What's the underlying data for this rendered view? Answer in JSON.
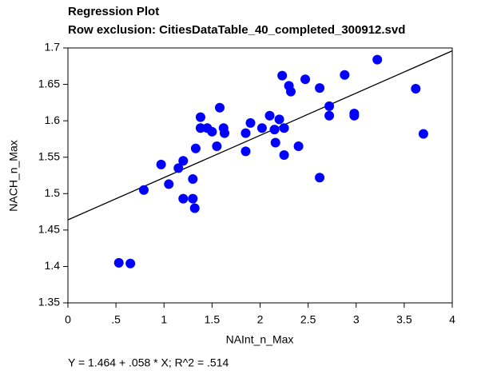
{
  "chart_data": {
    "type": "scatter",
    "title": "Regression Plot",
    "subtitle": "Row exclusion: CitiesDataTable_40_completed_300912.svd",
    "x_label": "NAInt_n_Max",
    "y_label": "NACH_n_Max",
    "annotation": "Y = 1.464 + .058 * X; R^2 = .514",
    "color": "#0000ff",
    "xlim": [
      0,
      4
    ],
    "ylim": [
      1.35,
      1.7
    ],
    "xticks": [
      0,
      {
        "value": 0.5,
        "label": ".5"
      },
      1,
      1.5,
      2,
      2.5,
      3,
      3.5,
      4
    ],
    "yticks": [
      1.35,
      1.4,
      1.45,
      1.5,
      1.55,
      1.6,
      1.65,
      1.7
    ],
    "fit": {
      "intercept": 1.464,
      "slope": 0.058
    },
    "x": [
      0.53,
      0.65,
      0.79,
      0.97,
      1.05,
      1.15,
      1.2,
      1.2,
      1.3,
      1.3,
      1.32,
      1.33,
      1.38,
      1.38,
      1.45,
      1.5,
      1.55,
      1.58,
      1.62,
      1.63,
      1.85,
      1.85,
      1.9,
      2.02,
      2.1,
      2.15,
      2.16,
      2.2,
      2.23,
      2.25,
      2.25,
      2.3,
      2.32,
      2.4,
      2.47,
      2.62,
      2.62,
      2.72,
      2.72,
      2.88,
      2.98,
      2.98,
      3.22,
      3.62,
      3.7
    ],
    "values": [
      1.405,
      1.404,
      1.505,
      1.54,
      1.513,
      1.535,
      1.545,
      1.493,
      1.52,
      1.493,
      1.48,
      1.562,
      1.59,
      1.605,
      1.59,
      1.585,
      1.565,
      1.618,
      1.59,
      1.583,
      1.583,
      1.558,
      1.597,
      1.59,
      1.607,
      1.588,
      1.57,
      1.602,
      1.662,
      1.59,
      1.553,
      1.648,
      1.64,
      1.565,
      1.657,
      1.645,
      1.522,
      1.62,
      1.607,
      1.663,
      1.61,
      1.607,
      1.684,
      1.644,
      1.582
    ]
  }
}
